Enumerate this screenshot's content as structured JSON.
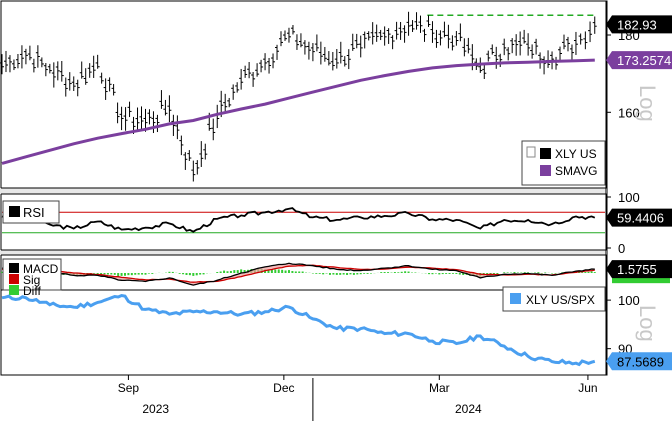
{
  "colors": {
    "price": "#000000",
    "sma": "#7b3f9e",
    "rsi_upper": "#cc0000",
    "rsi_lower": "#22aa22",
    "rsi_line": "#000000",
    "macd": "#000000",
    "sig": "#cc0000",
    "diff": "#33cc33",
    "ratio": "#4a9ff0",
    "grid_dash": "#22aa22"
  },
  "chart_data": [
    {
      "type": "line",
      "panel": "price",
      "scale": "log",
      "scale_label": "Log",
      "ylim": [
        143,
        189
      ],
      "yticks": [
        160,
        180
      ],
      "legend": [
        "XLY US",
        "SMAVG"
      ],
      "legend_position": "bottom-right",
      "last_values": {
        "price": "182.93",
        "sma": "173.2574"
      },
      "x": [
        "2023-07-03",
        "2023-07-17",
        "2023-07-31",
        "2023-08-14",
        "2023-08-28",
        "2023-09-11",
        "2023-09-25",
        "2023-10-09",
        "2023-10-23",
        "2023-11-06",
        "2023-11-20",
        "2023-12-04",
        "2023-12-18",
        "2024-01-01",
        "2024-01-15",
        "2024-01-29",
        "2024-02-12",
        "2024-02-26",
        "2024-03-11",
        "2024-03-25",
        "2024-04-08",
        "2024-04-22",
        "2024-05-06",
        "2024-05-20",
        "2024-06-03",
        "2024-06-14"
      ],
      "series": [
        {
          "values": [
            172,
            175,
            171,
            167,
            172,
            159,
            158,
            161,
            146,
            159,
            168,
            173,
            180,
            176,
            173,
            177,
            180,
            183,
            181,
            179,
            171,
            177,
            177,
            174,
            178,
            182.93
          ]
        },
        {
          "values": [
            148,
            149.5,
            151,
            152.5,
            153.8,
            154.9,
            155.9,
            157.2,
            158,
            159.5,
            160.8,
            162,
            163.5,
            165,
            166.5,
            168,
            169.2,
            170.3,
            171.2,
            171.8,
            172.2,
            172.5,
            172.7,
            172.9,
            173.1,
            173.2574
          ]
        }
      ],
      "reference_line": {
        "value": 185.5,
        "style": "dashed"
      }
    },
    {
      "type": "line",
      "panel": "rsi",
      "legend": [
        "RSI"
      ],
      "ylim": [
        0,
        100
      ],
      "yticks": [
        0,
        100
      ],
      "last_value": "59.4406",
      "levels": [
        70,
        30
      ],
      "x": [
        "2023-07-03",
        "2023-07-17",
        "2023-07-31",
        "2023-08-14",
        "2023-08-28",
        "2023-09-11",
        "2023-09-25",
        "2023-10-09",
        "2023-10-23",
        "2023-11-06",
        "2023-11-20",
        "2023-12-04",
        "2023-12-18",
        "2024-01-01",
        "2024-01-15",
        "2024-01-29",
        "2024-02-12",
        "2024-02-26",
        "2024-03-11",
        "2024-03-25",
        "2024-04-08",
        "2024-04-22",
        "2024-05-06",
        "2024-05-20",
        "2024-06-03",
        "2024-06-14"
      ],
      "values": [
        62,
        55,
        46,
        38,
        52,
        36,
        40,
        48,
        32,
        57,
        64,
        70,
        77,
        60,
        55,
        60,
        63,
        68,
        56,
        55,
        38,
        55,
        55,
        47,
        62,
        59.44
      ]
    },
    {
      "type": "line",
      "panel": "macd",
      "legend": [
        "MACD",
        "Sig",
        "Diff"
      ],
      "last_value": "1.5755",
      "ylim": [
        -7,
        7
      ],
      "x": [
        "2023-07-03",
        "2023-07-17",
        "2023-07-31",
        "2023-08-14",
        "2023-08-28",
        "2023-09-11",
        "2023-09-25",
        "2023-10-09",
        "2023-10-23",
        "2023-11-06",
        "2023-11-20",
        "2023-12-04",
        "2023-12-18",
        "2024-01-01",
        "2024-01-15",
        "2024-01-29",
        "2024-02-12",
        "2024-02-26",
        "2024-03-11",
        "2024-03-25",
        "2024-04-08",
        "2024-04-22",
        "2024-05-06",
        "2024-05-20",
        "2024-06-03",
        "2024-06-14"
      ],
      "series": [
        {
          "values": [
            2,
            1.5,
            0.5,
            -1,
            -1,
            -3,
            -3.5,
            -2,
            -5,
            -3,
            0,
            2.5,
            4,
            3,
            1.5,
            1,
            2,
            3,
            1.5,
            1,
            -2,
            -0.5,
            -0.2,
            -1,
            0.8,
            1.58
          ]
        },
        {
          "values": [
            1.5,
            1.6,
            1,
            0,
            -0.6,
            -1.8,
            -2.8,
            -2.5,
            -3.8,
            -3.4,
            -1.5,
            1,
            2.8,
            3.2,
            2.3,
            1.5,
            1.6,
            2.4,
            2,
            1.4,
            -0.5,
            -0.8,
            -0.5,
            -0.8,
            0.3,
            1.2
          ]
        }
      ]
    },
    {
      "type": "line",
      "panel": "ratio",
      "scale": "log",
      "scale_label": "Log",
      "legend": [
        "XLY US/SPX"
      ],
      "legend_position": "top-right",
      "ylim": [
        85,
        102
      ],
      "yticks": [
        90,
        100
      ],
      "last_value": "87.5689",
      "x": [
        "2023-07-03",
        "2023-07-17",
        "2023-07-31",
        "2023-08-14",
        "2023-08-28",
        "2023-09-11",
        "2023-09-25",
        "2023-10-09",
        "2023-10-23",
        "2023-11-06",
        "2023-11-20",
        "2023-12-04",
        "2023-12-18",
        "2024-01-01",
        "2024-01-15",
        "2024-01-29",
        "2024-02-12",
        "2024-02-26",
        "2024-03-11",
        "2024-03-25",
        "2024-04-08",
        "2024-04-22",
        "2024-05-06",
        "2024-05-20",
        "2024-06-03",
        "2024-06-14"
      ],
      "values": [
        100.5,
        100.5,
        99,
        98.5,
        99.5,
        101,
        98,
        97,
        97.5,
        97.5,
        97,
        97.5,
        98.5,
        96,
        94,
        94,
        93,
        93,
        91.5,
        91,
        92.5,
        90.5,
        88.5,
        87.5,
        87.2,
        87.57
      ]
    }
  ],
  "x_axis": {
    "months": [
      {
        "label": "Sep",
        "date": "2023-09-15"
      },
      {
        "label": "Dec",
        "date": "2023-12-15"
      },
      {
        "label": "Mar",
        "date": "2024-03-15"
      },
      {
        "label": "Jun",
        "date": "2024-06-10"
      }
    ],
    "years": [
      {
        "label": "2023",
        "date": "2023-10-01"
      },
      {
        "label": "2024",
        "date": "2024-04-01"
      }
    ],
    "year_divider_date": "2024-01-01"
  }
}
